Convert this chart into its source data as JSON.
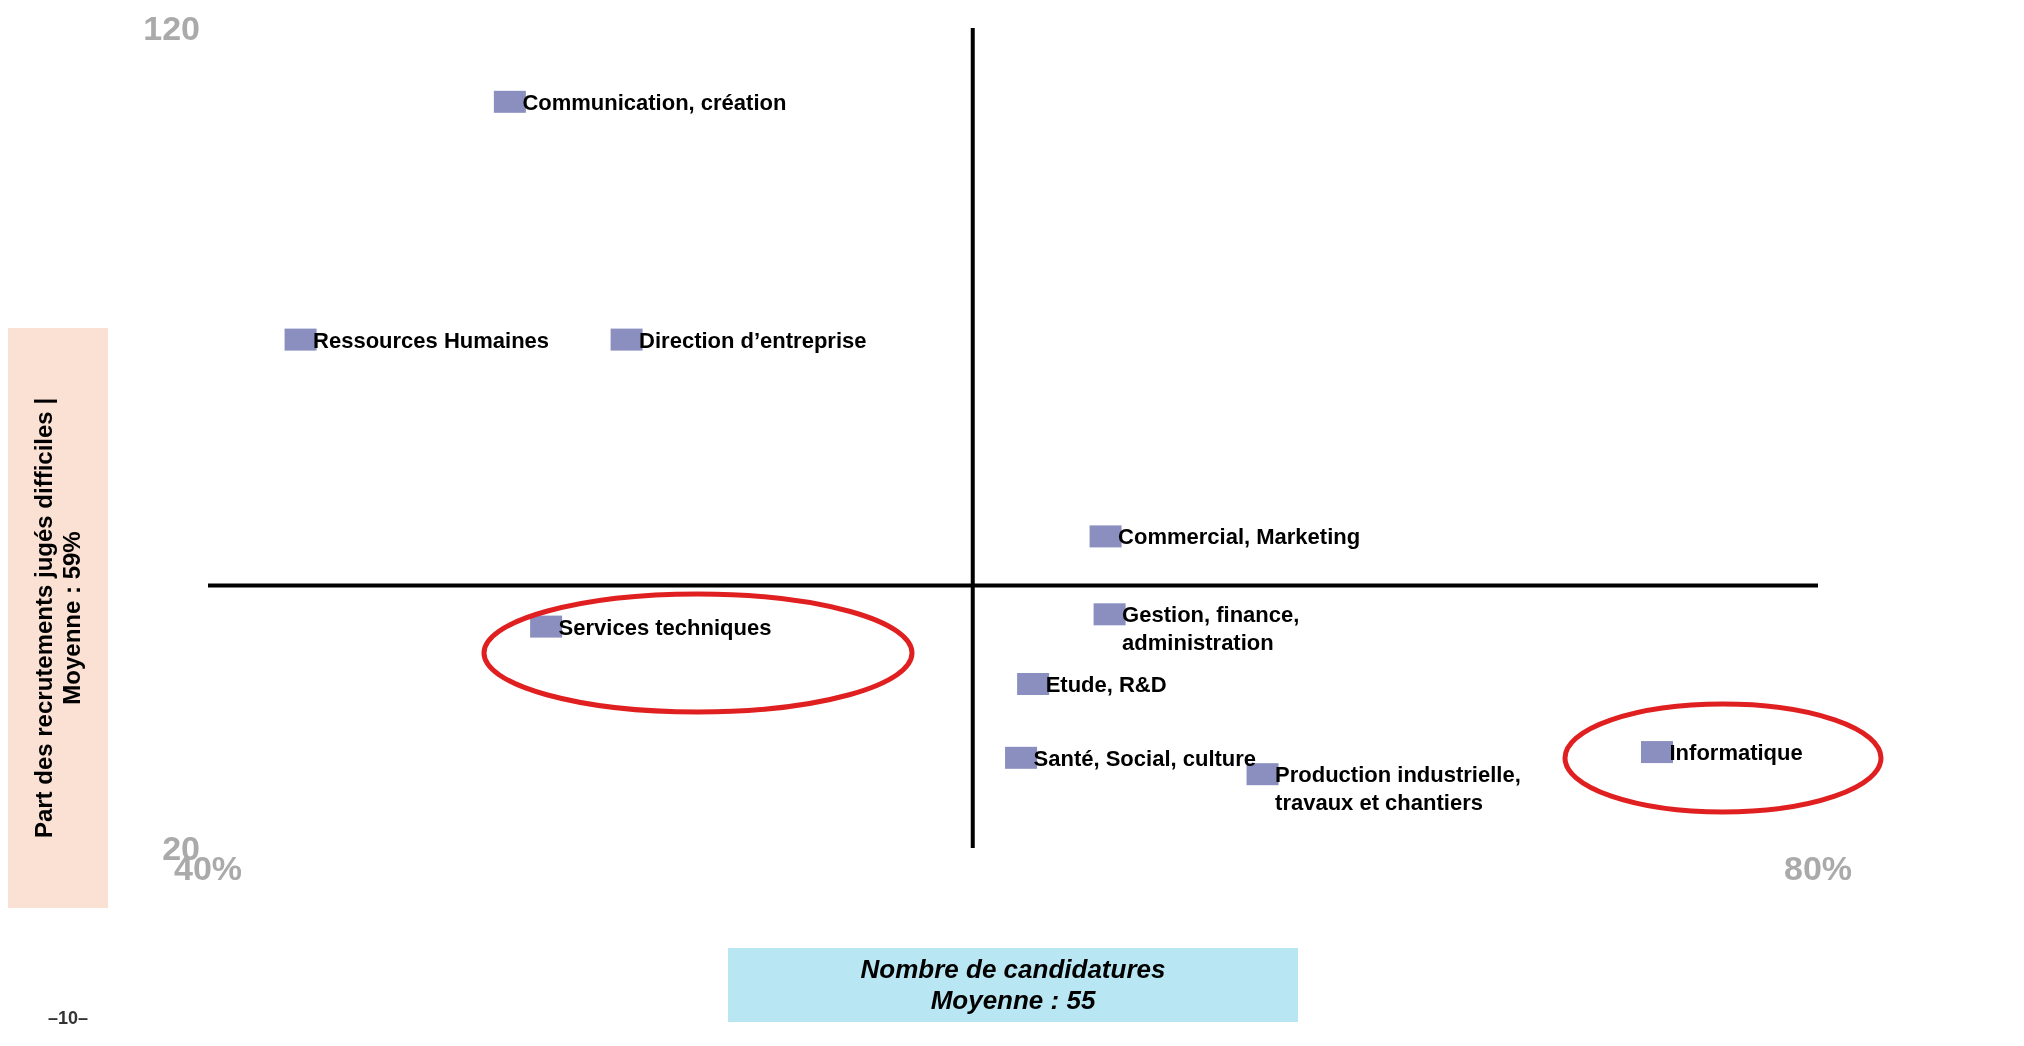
{
  "chart_data": {
    "type": "scatter",
    "xlabel": "Nombre de candidatures\nMoyenne : 55",
    "ylabel": "Part des recrutements jugés difficiles | Moyenne : 59%",
    "xlim": [
      40,
      80
    ],
    "xticks": [
      {
        "value": 40,
        "label": "40%"
      },
      {
        "value": 80,
        "label": "80%"
      }
    ],
    "ylim": [
      20,
      120
    ],
    "yticks": [
      20,
      120
    ],
    "marker": "square",
    "grid": false,
    "legend": false,
    "ref_lines": [
      {
        "axis": "x",
        "value": 59
      },
      {
        "axis": "y",
        "value": 52
      }
    ],
    "annotations": [
      "–10–"
    ],
    "series": [
      {
        "name": "Communication, création",
        "color": "#8b8fc0",
        "x": [
          47.5
        ],
        "values": [
          111
        ]
      },
      {
        "name": "Ressources Humaines",
        "color": "#8b8fc0",
        "x": [
          42.3
        ],
        "values": [
          82
        ]
      },
      {
        "name": "Direction d’entreprise",
        "color": "#8b8fc0",
        "x": [
          50.4
        ],
        "values": [
          82
        ]
      },
      {
        "name": "Commercial, Marketing",
        "color": "#8b8fc0",
        "x": [
          62.3
        ],
        "values": [
          58
        ]
      },
      {
        "name": "Gestion, finance, administration",
        "color": "#8b8fc0",
        "x": [
          62.4
        ],
        "values": [
          48.5
        ]
      },
      {
        "name": "Services techniques",
        "color": "#8b8fc0",
        "x": [
          48.4
        ],
        "values": [
          47
        ]
      },
      {
        "name": "Etude, R&D",
        "color": "#8b8fc0",
        "x": [
          60.5
        ],
        "values": [
          40
        ]
      },
      {
        "name": "Santé, Social, culture",
        "color": "#8b8fc0",
        "x": [
          60.2
        ],
        "values": [
          31
        ]
      },
      {
        "name": "Production industrielle, travaux et chantiers",
        "color": "#8b8fc0",
        "x": [
          66.2
        ],
        "values": [
          29
        ]
      },
      {
        "name": "Informatique",
        "color": "#8b8fc0",
        "x": [
          76
        ],
        "values": [
          31.7
        ]
      }
    ]
  }
}
